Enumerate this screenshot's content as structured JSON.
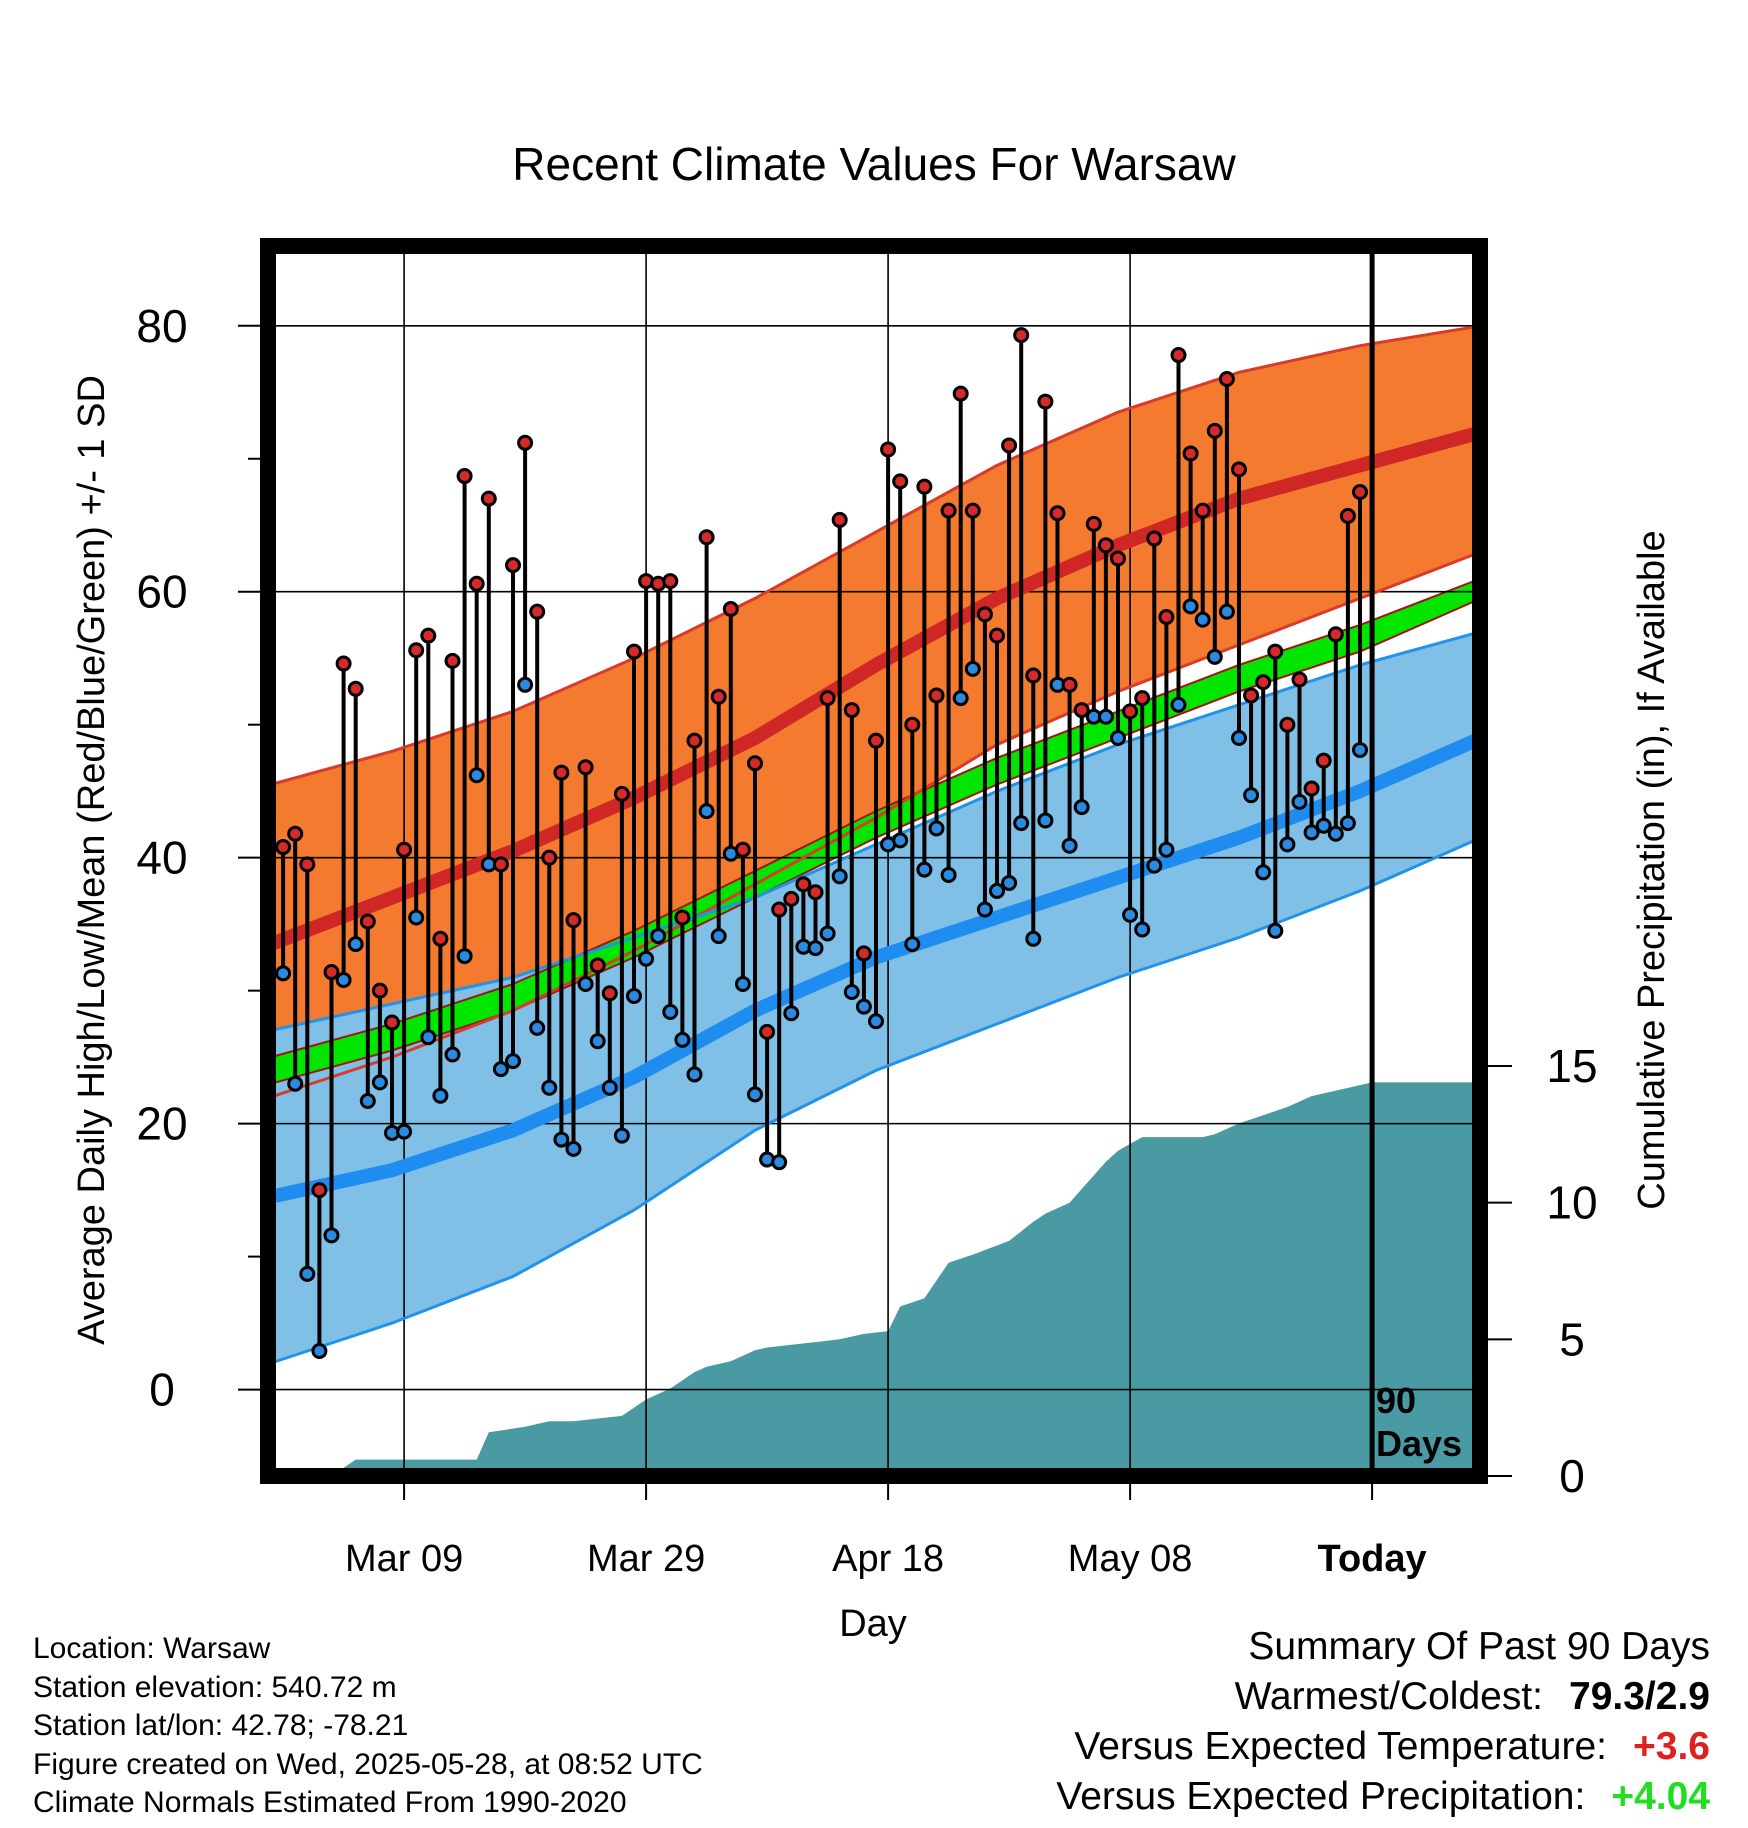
{
  "chart_data": {
    "type": "line",
    "title": "Recent Climate Values For Warsaw",
    "xlabel": "Day",
    "ylabel": "Average Daily High/Low/Mean (Red/Blue/Green) +/- 1 SD",
    "y2label": "Cumulative Precipitation (in), If Available",
    "ylim": [
      -6.5,
      86
    ],
    "y2lim": [
      0,
      45
    ],
    "yticks": [
      "0",
      "20",
      "40",
      "60",
      "80"
    ],
    "y2ticks": [
      "0",
      "5",
      "10",
      "15"
    ],
    "xticks": [
      {
        "day": 10,
        "label": "Mar 09"
      },
      {
        "day": 30,
        "label": "Mar 29"
      },
      {
        "day": 50,
        "label": "Apr 18"
      },
      {
        "day": 70,
        "label": "May 08"
      },
      {
        "day": 90,
        "label": "Today"
      }
    ],
    "xlim": [
      -1,
      99
    ],
    "today_day": 90,
    "period_label": "90 Days",
    "grid": true,
    "colors": {
      "high_band": "#f37a2e",
      "high_band_edge": "#d93a2a",
      "high_mean": "#cf2626",
      "low_band": "#80bfe6",
      "low_band_edge": "#2193e8",
      "low_mean": "#1f8cf0",
      "mean_band": "#00e600",
      "mean_band_edge": "#a21414",
      "precip": "#4a9aa4",
      "high_dot": "#d42a2a",
      "low_dot": "#2b8ae0"
    },
    "normal_high": {
      "x": [
        -1,
        9,
        19,
        29,
        39,
        49,
        59,
        69,
        79,
        89,
        99
      ],
      "mean": [
        33.5,
        37,
        40.5,
        44.5,
        49,
        54.5,
        59.5,
        63.5,
        67,
        69.5,
        72
      ],
      "upper": [
        45.5,
        48,
        51,
        55,
        59.5,
        64.5,
        69.5,
        73.5,
        76.5,
        78.5,
        80
      ],
      "lower": [
        22,
        25,
        28.5,
        33,
        38,
        43,
        48.5,
        52.5,
        56,
        59.5,
        63
      ]
    },
    "normal_low": {
      "x": [
        -1,
        9,
        19,
        29,
        39,
        49,
        59,
        69,
        79,
        89,
        99
      ],
      "mean": [
        14.5,
        16.5,
        19.5,
        23.5,
        28.5,
        32.5,
        35.5,
        38.5,
        41.5,
        45,
        49
      ],
      "upper": [
        27,
        29,
        31,
        34,
        37,
        41,
        45,
        48.5,
        51.5,
        54.5,
        57
      ],
      "lower": [
        2,
        5,
        8.5,
        13.5,
        19.5,
        24,
        27.5,
        31,
        34,
        37.5,
        41.5
      ]
    },
    "normal_mean": {
      "x": [
        -1,
        9,
        19,
        29,
        39,
        49,
        59,
        69,
        79,
        89,
        99
      ],
      "upper": [
        25,
        27.5,
        30.5,
        34.5,
        39,
        43.5,
        47.5,
        51,
        54.5,
        57.5,
        61
      ],
      "lower": [
        23,
        25.5,
        28.5,
        32.5,
        37,
        41.5,
        45.5,
        49,
        52.5,
        55.5,
        59.5
      ]
    },
    "daily_high": [
      40.8,
      41.8,
      39.5,
      15,
      31.4,
      54.6,
      52.7,
      35.2,
      30,
      27.6,
      40.6,
      55.6,
      56.7,
      33.9,
      54.8,
      68.7,
      60.6,
      67,
      39.5,
      62,
      71.2,
      58.5,
      40,
      46.4,
      35.3,
      46.8,
      31.9,
      29.8,
      44.8,
      55.5,
      60.8,
      60.6,
      60.8,
      35.5,
      48.8,
      64.1,
      52.1,
      58.7,
      40.6,
      47.1,
      26.9,
      36.1,
      36.9,
      38,
      37.4,
      52,
      65.4,
      51.1,
      32.8,
      48.8,
      70.7,
      68.3,
      50,
      67.9,
      52.2,
      66.1,
      74.9,
      66.1,
      58.3,
      56.7,
      71,
      79.3,
      53.7,
      74.3,
      65.9,
      53,
      51.1,
      65.1,
      63.5,
      62.5,
      51,
      52,
      64,
      58.1,
      77.8,
      70.4,
      66.1,
      72.1,
      76,
      69.2,
      52.2,
      53.2,
      55.5,
      50,
      53.4,
      45.2,
      47.3,
      56.8,
      65.7,
      67.5
    ],
    "daily_low": [
      31.3,
      23,
      8.7,
      2.9,
      11.6,
      30.8,
      33.5,
      21.7,
      23.1,
      19.3,
      19.4,
      35.5,
      26.5,
      22.1,
      25.2,
      32.6,
      46.2,
      39.5,
      24.1,
      24.7,
      53,
      27.2,
      22.7,
      18.8,
      18.1,
      30.5,
      26.2,
      22.7,
      19.1,
      29.6,
      32.4,
      34.1,
      28.4,
      26.3,
      23.7,
      43.5,
      34.1,
      40.3,
      30.5,
      22.2,
      17.3,
      17.1,
      28.3,
      33.3,
      33.2,
      34.3,
      38.6,
      29.9,
      28.8,
      27.7,
      41,
      41.3,
      33.5,
      39.1,
      42.2,
      38.7,
      52,
      54.2,
      36.1,
      37.5,
      38.1,
      42.6,
      33.9,
      42.8,
      53,
      40.9,
      43.8,
      50.6,
      50.6,
      49,
      35.7,
      34.6,
      39.4,
      40.6,
      51.5,
      58.9,
      57.9,
      55.1,
      58.5,
      49,
      44.7,
      38.9,
      34.5,
      41,
      44.2,
      41.9,
      42.4,
      41.8,
      42.6,
      48.1
    ],
    "precip_cumulative": {
      "day": [
        0,
        4,
        6,
        16,
        17,
        20,
        22,
        24,
        28,
        30,
        32,
        34,
        35,
        37,
        39,
        40,
        42,
        44,
        46,
        48,
        50,
        51,
        53,
        55,
        57,
        60,
        62,
        63,
        65,
        66,
        68,
        69,
        71,
        76,
        77,
        79,
        81,
        83,
        85,
        90,
        99
      ],
      "value": [
        0,
        0,
        0.6,
        0.6,
        1.6,
        1.8,
        2,
        2,
        2.2,
        2.8,
        3.2,
        3.8,
        4,
        4.2,
        4.6,
        4.7,
        4.8,
        4.9,
        5,
        5.2,
        5.3,
        6.2,
        6.5,
        7.8,
        8.1,
        8.6,
        9.3,
        9.6,
        10,
        10.5,
        11.5,
        11.9,
        12.4,
        12.4,
        12.5,
        12.9,
        13.2,
        13.5,
        13.9,
        14.4,
        14.4
      ]
    }
  },
  "footer": {
    "location": "Location: Warsaw",
    "elevation": "Station elevation: 540.72 m",
    "latlon": "Station lat/lon: 42.78; -78.21",
    "created": "Figure created on Wed, 2025-05-28, at 08:52 UTC",
    "normals": "Climate Normals Estimated From 1990-2020"
  },
  "summary": {
    "heading": "Summary Of Past 90 Days",
    "warmest_coldest_label": "Warmest/Coldest:",
    "warmest_coldest_value": "79.3/2.9",
    "temp_label": "Versus Expected Temperature:",
    "temp_value": "+3.6",
    "temp_color": "#e02020",
    "precip_label": "Versus Expected Precipitation:",
    "precip_value": "+4.04",
    "precip_color": "#22dd22"
  }
}
